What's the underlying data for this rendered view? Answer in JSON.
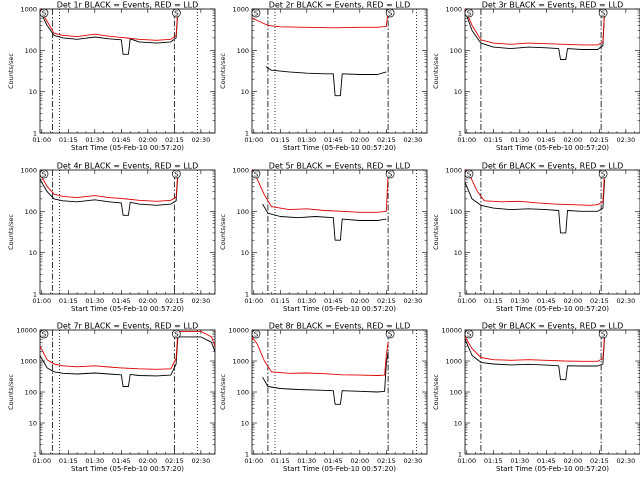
{
  "chart_data": [
    {
      "type": "line",
      "title": "Det 1r BLACK = Events, RED = LLD",
      "xlabel": "Start Time (05-Feb-10 00:57:20)",
      "ylabel": "Counts/sec",
      "yscale": "log",
      "xlim": [
        "00:59",
        "02:38"
      ],
      "ylim": [
        1,
        1000
      ],
      "x_ticks": [
        "01:00",
        "01:15",
        "01:30",
        "01:45",
        "02:00",
        "02:15",
        "02:30"
      ],
      "y_ticks": [
        "1",
        "10",
        "100",
        "1000"
      ],
      "markers": [
        "S",
        "S"
      ],
      "vlines_dashdot": [
        "01:06",
        "02:15"
      ],
      "vlines_dotted": [
        "01:10",
        "02:28"
      ],
      "series": [
        {
          "color": "#000000",
          "x": [
            "00:59",
            "01:03",
            "01:07",
            "01:12",
            "01:20",
            "01:30",
            "01:38",
            "01:45",
            "01:46",
            "01:49",
            "01:50",
            "01:55",
            "02:05",
            "02:13",
            "02:16",
            "02:17"
          ],
          "y": [
            900,
            400,
            230,
            200,
            185,
            210,
            190,
            180,
            80,
            80,
            190,
            160,
            150,
            160,
            200,
            900
          ]
        },
        {
          "color": "#e00000",
          "x": [
            "00:59",
            "01:03",
            "01:07",
            "01:12",
            "01:20",
            "01:30",
            "01:38",
            "01:45",
            "01:55",
            "02:05",
            "02:13",
            "02:16",
            "02:17"
          ],
          "y": [
            1000,
            500,
            260,
            230,
            215,
            245,
            220,
            205,
            185,
            175,
            185,
            230,
            1000
          ]
        }
      ]
    },
    {
      "type": "line",
      "title": "Det 2r BLACK = Events, RED = LLD",
      "xlabel": "Start Time (05-Feb-10 00:57:20)",
      "ylabel": "Counts/sec",
      "yscale": "log",
      "xlim": [
        "00:59",
        "02:38"
      ],
      "ylim": [
        1,
        1000
      ],
      "x_ticks": [
        "01:00",
        "01:15",
        "01:30",
        "01:45",
        "02:00",
        "02:15",
        "02:30"
      ],
      "y_ticks": [
        "1",
        "10",
        "100",
        "1000"
      ],
      "markers": [
        "S",
        "S"
      ],
      "vlines_dashdot": [
        "01:08",
        "02:16"
      ],
      "vlines_dotted": [
        "01:12",
        "02:32"
      ],
      "series": [
        {
          "color": "#000000",
          "x": [
            "01:07",
            "01:10",
            "01:20",
            "01:30",
            "01:40",
            "01:45",
            "01:46",
            "01:49",
            "01:50",
            "02:00",
            "02:10",
            "02:15"
          ],
          "y": [
            40,
            33,
            30,
            28,
            27,
            27,
            8,
            8,
            27,
            26,
            26,
            30
          ]
        },
        {
          "color": "#e00000",
          "x": [
            "00:59",
            "01:03",
            "01:08",
            "01:15",
            "01:30",
            "01:45",
            "02:00",
            "02:10",
            "02:15",
            "02:16"
          ],
          "y": [
            600,
            500,
            400,
            370,
            360,
            350,
            360,
            360,
            380,
            900
          ]
        }
      ]
    },
    {
      "type": "line",
      "title": "Det 3r BLACK = Events, RED = LLD",
      "xlabel": "Start Time (05-Feb-10 00:57:20)",
      "ylabel": "Counts/sec",
      "yscale": "log",
      "xlim": [
        "00:59",
        "02:38"
      ],
      "ylim": [
        1,
        1000
      ],
      "x_ticks": [
        "01:00",
        "01:15",
        "01:30",
        "01:45",
        "02:00",
        "02:15",
        "02:30"
      ],
      "y_ticks": [
        "1",
        "10",
        "100",
        "1000"
      ],
      "markers": [
        "S",
        "S"
      ],
      "vlines_dashdot": [
        "01:08",
        "02:16"
      ],
      "vlines_dotted": [],
      "series": [
        {
          "color": "#000000",
          "x": [
            "00:59",
            "01:03",
            "01:08",
            "01:15",
            "01:25",
            "01:35",
            "01:45",
            "01:52",
            "01:53",
            "01:56",
            "01:57",
            "02:05",
            "02:14",
            "02:17",
            "02:18"
          ],
          "y": [
            900,
            300,
            150,
            120,
            110,
            120,
            115,
            110,
            60,
            60,
            110,
            105,
            105,
            130,
            900
          ]
        },
        {
          "color": "#e00000",
          "x": [
            "00:59",
            "01:03",
            "01:08",
            "01:15",
            "01:25",
            "01:35",
            "01:45",
            "01:55",
            "02:05",
            "02:14",
            "02:17",
            "02:18"
          ],
          "y": [
            1000,
            400,
            180,
            150,
            140,
            150,
            145,
            140,
            135,
            135,
            160,
            1000
          ]
        }
      ]
    },
    {
      "type": "line",
      "title": "Det 4r BLACK = Events, RED = LLD",
      "xlabel": "Start Time (05-Feb-10 00:57:20)",
      "ylabel": "Counts/sec",
      "yscale": "log",
      "xlim": [
        "00:59",
        "02:38"
      ],
      "ylim": [
        1,
        1000
      ],
      "x_ticks": [
        "01:00",
        "01:15",
        "01:30",
        "01:45",
        "02:00",
        "02:15",
        "02:30"
      ],
      "y_ticks": [
        "1",
        "10",
        "100",
        "1000"
      ],
      "markers": [
        "S",
        "S"
      ],
      "vlines_dashdot": [
        "01:06",
        "02:15"
      ],
      "vlines_dotted": [
        "01:10",
        "02:28"
      ],
      "series": [
        {
          "color": "#000000",
          "x": [
            "00:59",
            "01:03",
            "01:07",
            "01:12",
            "01:20",
            "01:30",
            "01:38",
            "01:45",
            "01:46",
            "01:49",
            "01:50",
            "01:55",
            "02:05",
            "02:13",
            "02:16",
            "02:17"
          ],
          "y": [
            600,
            300,
            200,
            180,
            170,
            190,
            170,
            160,
            80,
            80,
            165,
            150,
            140,
            150,
            180,
            800
          ]
        },
        {
          "color": "#e00000",
          "x": [
            "00:59",
            "01:03",
            "01:07",
            "01:12",
            "01:20",
            "01:30",
            "01:38",
            "01:45",
            "01:55",
            "02:05",
            "02:13",
            "02:16",
            "02:17"
          ],
          "y": [
            800,
            400,
            260,
            230,
            215,
            240,
            215,
            205,
            185,
            175,
            185,
            220,
            900
          ]
        }
      ]
    },
    {
      "type": "line",
      "title": "Det 5r BLACK = Events, RED = LLD",
      "xlabel": "Start Time (05-Feb-10 00:57:20)",
      "ylabel": "Counts/sec",
      "yscale": "log",
      "xlim": [
        "00:59",
        "02:38"
      ],
      "ylim": [
        1,
        1000
      ],
      "x_ticks": [
        "01:00",
        "01:15",
        "01:30",
        "01:45",
        "02:00",
        "02:15",
        "02:30"
      ],
      "y_ticks": [
        "1",
        "10",
        "100",
        "1000"
      ],
      "markers": [
        "S",
        "S"
      ],
      "vlines_dashdot": [
        "01:08",
        "02:16"
      ],
      "vlines_dotted": [
        "01:12",
        "02:32"
      ],
      "series": [
        {
          "color": "#000000",
          "x": [
            "01:05",
            "01:08",
            "01:15",
            "01:25",
            "01:35",
            "01:45",
            "01:46",
            "01:49",
            "01:50",
            "02:00",
            "02:10",
            "02:15"
          ],
          "y": [
            150,
            90,
            75,
            70,
            75,
            70,
            20,
            20,
            65,
            60,
            60,
            65
          ]
        },
        {
          "color": "#e00000",
          "x": [
            "00:59",
            "01:02",
            "01:06",
            "01:10",
            "01:20",
            "01:30",
            "01:40",
            "01:50",
            "02:00",
            "02:10",
            "02:15",
            "02:16"
          ],
          "y": [
            1000,
            600,
            250,
            130,
            110,
            115,
            105,
            100,
            95,
            95,
            100,
            800
          ]
        }
      ]
    },
    {
      "type": "line",
      "title": "Det 6r BLACK = Events, RED = LLD",
      "xlabel": "Start Time (05-Feb-10 00:57:20)",
      "ylabel": "Counts/sec",
      "yscale": "log",
      "xlim": [
        "00:59",
        "02:38"
      ],
      "ylim": [
        1,
        1000
      ],
      "x_ticks": [
        "01:00",
        "01:15",
        "01:30",
        "01:45",
        "02:00",
        "02:15",
        "02:30"
      ],
      "y_ticks": [
        "1",
        "10",
        "100",
        "1000"
      ],
      "markers": [
        "S",
        "S"
      ],
      "vlines_dashdot": [
        "01:08",
        "02:16"
      ],
      "vlines_dotted": [],
      "series": [
        {
          "color": "#000000",
          "x": [
            "00:59",
            "01:03",
            "01:08",
            "01:15",
            "01:25",
            "01:35",
            "01:45",
            "01:52",
            "01:53",
            "01:56",
            "01:57",
            "02:05",
            "02:14",
            "02:17",
            "02:18"
          ],
          "y": [
            500,
            200,
            140,
            120,
            110,
            115,
            110,
            105,
            30,
            30,
            105,
            100,
            100,
            120,
            600
          ]
        },
        {
          "color": "#e00000",
          "x": [
            "00:59",
            "01:02",
            "01:06",
            "01:10",
            "01:20",
            "01:30",
            "01:40",
            "01:50",
            "02:00",
            "02:10",
            "02:14",
            "02:17",
            "02:18"
          ],
          "y": [
            1000,
            700,
            300,
            180,
            170,
            175,
            160,
            150,
            145,
            140,
            145,
            170,
            1000
          ]
        }
      ]
    },
    {
      "type": "line",
      "title": "Det 7r BLACK = Events, RED = LLD",
      "xlabel": "Start Time (05-Feb-10 00:57:20)",
      "ylabel": "Counts/sec",
      "yscale": "log",
      "xlim": [
        "00:59",
        "02:38"
      ],
      "ylim": [
        1,
        10000
      ],
      "x_ticks": [
        "01:00",
        "01:15",
        "01:30",
        "01:45",
        "02:00",
        "02:15",
        "02:30"
      ],
      "y_ticks": [
        "1",
        "10",
        "100",
        "1000",
        "10000"
      ],
      "markers": [
        "S",
        "S"
      ],
      "vlines_dashdot": [
        "01:06",
        "02:15"
      ],
      "vlines_dotted": [
        "01:10",
        "02:28"
      ],
      "series": [
        {
          "color": "#000000",
          "x": [
            "00:59",
            "01:03",
            "01:07",
            "01:12",
            "01:20",
            "01:30",
            "01:38",
            "01:45",
            "01:46",
            "01:49",
            "01:50",
            "01:55",
            "02:05",
            "02:13",
            "02:16",
            "02:17",
            "02:30",
            "02:36",
            "02:38"
          ],
          "y": [
            1500,
            600,
            450,
            400,
            380,
            410,
            380,
            360,
            150,
            150,
            370,
            340,
            330,
            350,
            800,
            6000,
            6000,
            4000,
            2000
          ]
        },
        {
          "color": "#e00000",
          "x": [
            "00:59",
            "01:03",
            "01:07",
            "01:12",
            "01:20",
            "01:30",
            "01:38",
            "01:45",
            "01:55",
            "02:05",
            "02:13",
            "02:16",
            "02:17",
            "02:30",
            "02:36",
            "02:38"
          ],
          "y": [
            3000,
            1100,
            800,
            700,
            650,
            700,
            640,
            600,
            560,
            540,
            560,
            1200,
            9000,
            9000,
            6000,
            3000
          ]
        }
      ]
    },
    {
      "type": "line",
      "title": "Det 8r BLACK = Events, RED = LLD",
      "xlabel": "Start Time (05-Feb-10 00:57:20)",
      "ylabel": "Counts/sec",
      "yscale": "log",
      "xlim": [
        "00:59",
        "02:38"
      ],
      "ylim": [
        1,
        10000
      ],
      "x_ticks": [
        "01:00",
        "01:15",
        "01:30",
        "01:45",
        "02:00",
        "02:15",
        "02:30"
      ],
      "y_ticks": [
        "1",
        "10",
        "100",
        "1000",
        "10000"
      ],
      "markers": [
        "S",
        "S"
      ],
      "vlines_dashdot": [
        "01:08",
        "02:16"
      ],
      "vlines_dotted": [
        "01:12",
        "02:32"
      ],
      "series": [
        {
          "color": "#000000",
          "x": [
            "01:05",
            "01:08",
            "01:15",
            "01:25",
            "01:35",
            "01:45",
            "01:46",
            "01:49",
            "01:50",
            "02:00",
            "02:10",
            "02:14",
            "02:15",
            "02:16"
          ],
          "y": [
            300,
            150,
            130,
            120,
            115,
            110,
            40,
            40,
            110,
            105,
            100,
            105,
            800,
            2000
          ]
        },
        {
          "color": "#e00000",
          "x": [
            "00:59",
            "01:02",
            "01:06",
            "01:10",
            "01:20",
            "01:30",
            "01:40",
            "01:50",
            "02:00",
            "02:10",
            "02:14",
            "02:15",
            "02:16"
          ],
          "y": [
            6000,
            3500,
            1000,
            450,
            400,
            410,
            390,
            360,
            350,
            340,
            350,
            1500,
            4000
          ]
        }
      ]
    },
    {
      "type": "line",
      "title": "Det 9r BLACK = Events, RED = LLD",
      "xlabel": "Start Time (05-Feb-10 00:57:20)",
      "ylabel": "Counts/sec",
      "yscale": "log",
      "xlim": [
        "00:59",
        "02:38"
      ],
      "ylim": [
        1,
        10000
      ],
      "x_ticks": [
        "01:00",
        "01:15",
        "01:30",
        "01:45",
        "02:00",
        "02:15",
        "02:30"
      ],
      "y_ticks": [
        "1",
        "10",
        "100",
        "1000",
        "10000"
      ],
      "markers": [
        "S",
        "S"
      ],
      "vlines_dashdot": [
        "01:08",
        "02:16"
      ],
      "vlines_dotted": [],
      "series": [
        {
          "color": "#000000",
          "x": [
            "00:59",
            "01:03",
            "01:08",
            "01:15",
            "01:25",
            "01:35",
            "01:45",
            "01:52",
            "01:53",
            "01:56",
            "01:57",
            "02:05",
            "02:14",
            "02:17",
            "02:18"
          ],
          "y": [
            5000,
            1500,
            900,
            800,
            750,
            780,
            740,
            700,
            250,
            250,
            700,
            690,
            690,
            800,
            6000
          ]
        },
        {
          "color": "#e00000",
          "x": [
            "00:59",
            "01:03",
            "01:08",
            "01:15",
            "01:25",
            "01:35",
            "01:45",
            "01:55",
            "02:05",
            "02:14",
            "02:17",
            "02:18"
          ],
          "y": [
            6000,
            2500,
            1300,
            1100,
            1050,
            1100,
            1050,
            1000,
            980,
            980,
            1200,
            7000
          ]
        }
      ]
    }
  ]
}
